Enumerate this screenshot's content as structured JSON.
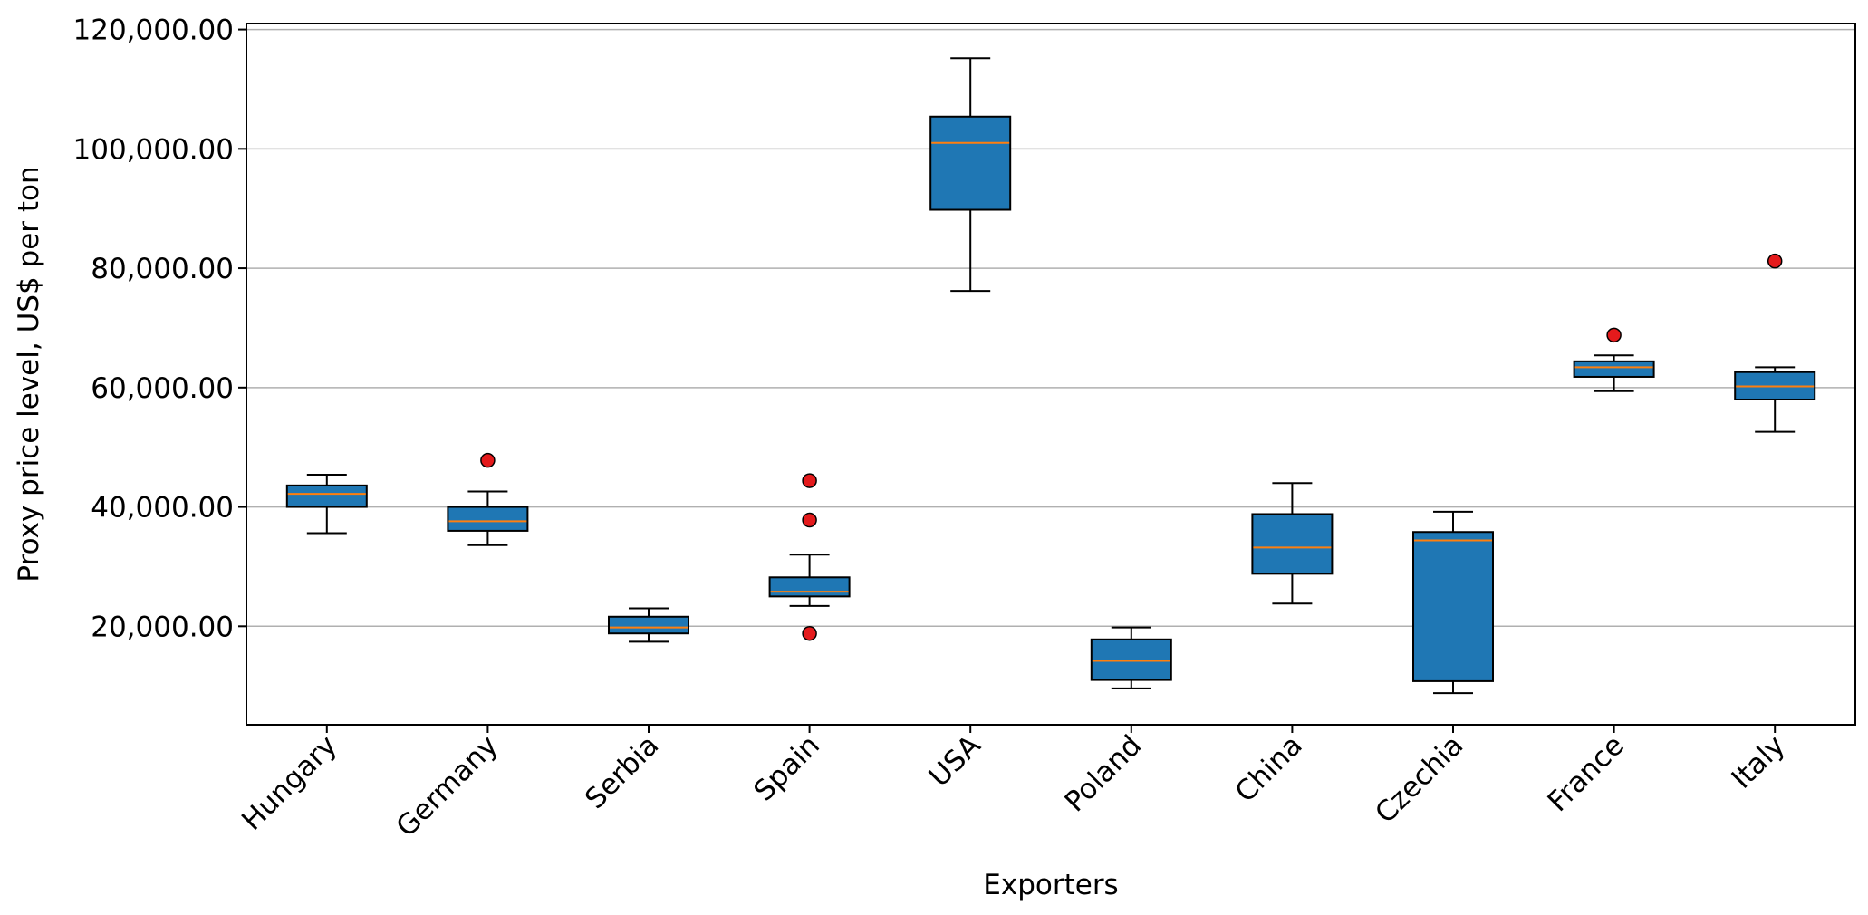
{
  "chart_data": {
    "type": "boxplot",
    "title": "",
    "xlabel": "Exporters",
    "ylabel": "Proxy price level, US$ per ton",
    "ylim": [
      3500,
      121000
    ],
    "yticks": [
      20000,
      40000,
      60000,
      80000,
      100000,
      120000
    ],
    "ytick_labels": [
      "20,000.00",
      "40,000.00",
      "60,000.00",
      "80,000.00",
      "100,000.00",
      "120,000.00"
    ],
    "grid": "horizontal",
    "legend": "none",
    "colors": {
      "box_fill": "#1f77b4",
      "median": "#ff7f0e",
      "outlier": "#e41a1c",
      "grid": "#b0b0b0"
    },
    "categories": [
      "Hungary",
      "Germany",
      "Serbia",
      "Spain",
      "USA",
      "Poland",
      "China",
      "Czechia",
      "France",
      "Italy"
    ],
    "boxes": [
      {
        "label": "Hungary",
        "whisker_low": 35600,
        "q1": 40000,
        "median": 42200,
        "q3": 43600,
        "whisker_high": 45400,
        "outliers": []
      },
      {
        "label": "Germany",
        "whisker_low": 33600,
        "q1": 36000,
        "median": 37600,
        "q3": 40000,
        "whisker_high": 42600,
        "outliers": [
          47800
        ]
      },
      {
        "label": "Serbia",
        "whisker_low": 17400,
        "q1": 18800,
        "median": 19800,
        "q3": 21600,
        "whisker_high": 23000,
        "outliers": []
      },
      {
        "label": "Spain",
        "whisker_low": 23400,
        "q1": 25000,
        "median": 25800,
        "q3": 28200,
        "whisker_high": 32000,
        "outliers": [
          18800,
          37800,
          44400
        ]
      },
      {
        "label": "USA",
        "whisker_low": 76200,
        "q1": 89800,
        "median": 101000,
        "q3": 105400,
        "whisker_high": 115200,
        "outliers": []
      },
      {
        "label": "Poland",
        "whisker_low": 9600,
        "q1": 11000,
        "median": 14200,
        "q3": 17800,
        "whisker_high": 19800,
        "outliers": []
      },
      {
        "label": "China",
        "whisker_low": 23800,
        "q1": 28800,
        "median": 33200,
        "q3": 38800,
        "whisker_high": 44000,
        "outliers": []
      },
      {
        "label": "Czechia",
        "whisker_low": 8800,
        "q1": 10800,
        "median": 34400,
        "q3": 35800,
        "whisker_high": 39200,
        "outliers": []
      },
      {
        "label": "France",
        "whisker_low": 59400,
        "q1": 61800,
        "median": 63400,
        "q3": 64400,
        "whisker_high": 65400,
        "outliers": [
          68800
        ]
      },
      {
        "label": "Italy",
        "whisker_low": 52600,
        "q1": 58000,
        "median": 60200,
        "q3": 62600,
        "whisker_high": 63400,
        "outliers": [
          81200
        ]
      }
    ]
  }
}
